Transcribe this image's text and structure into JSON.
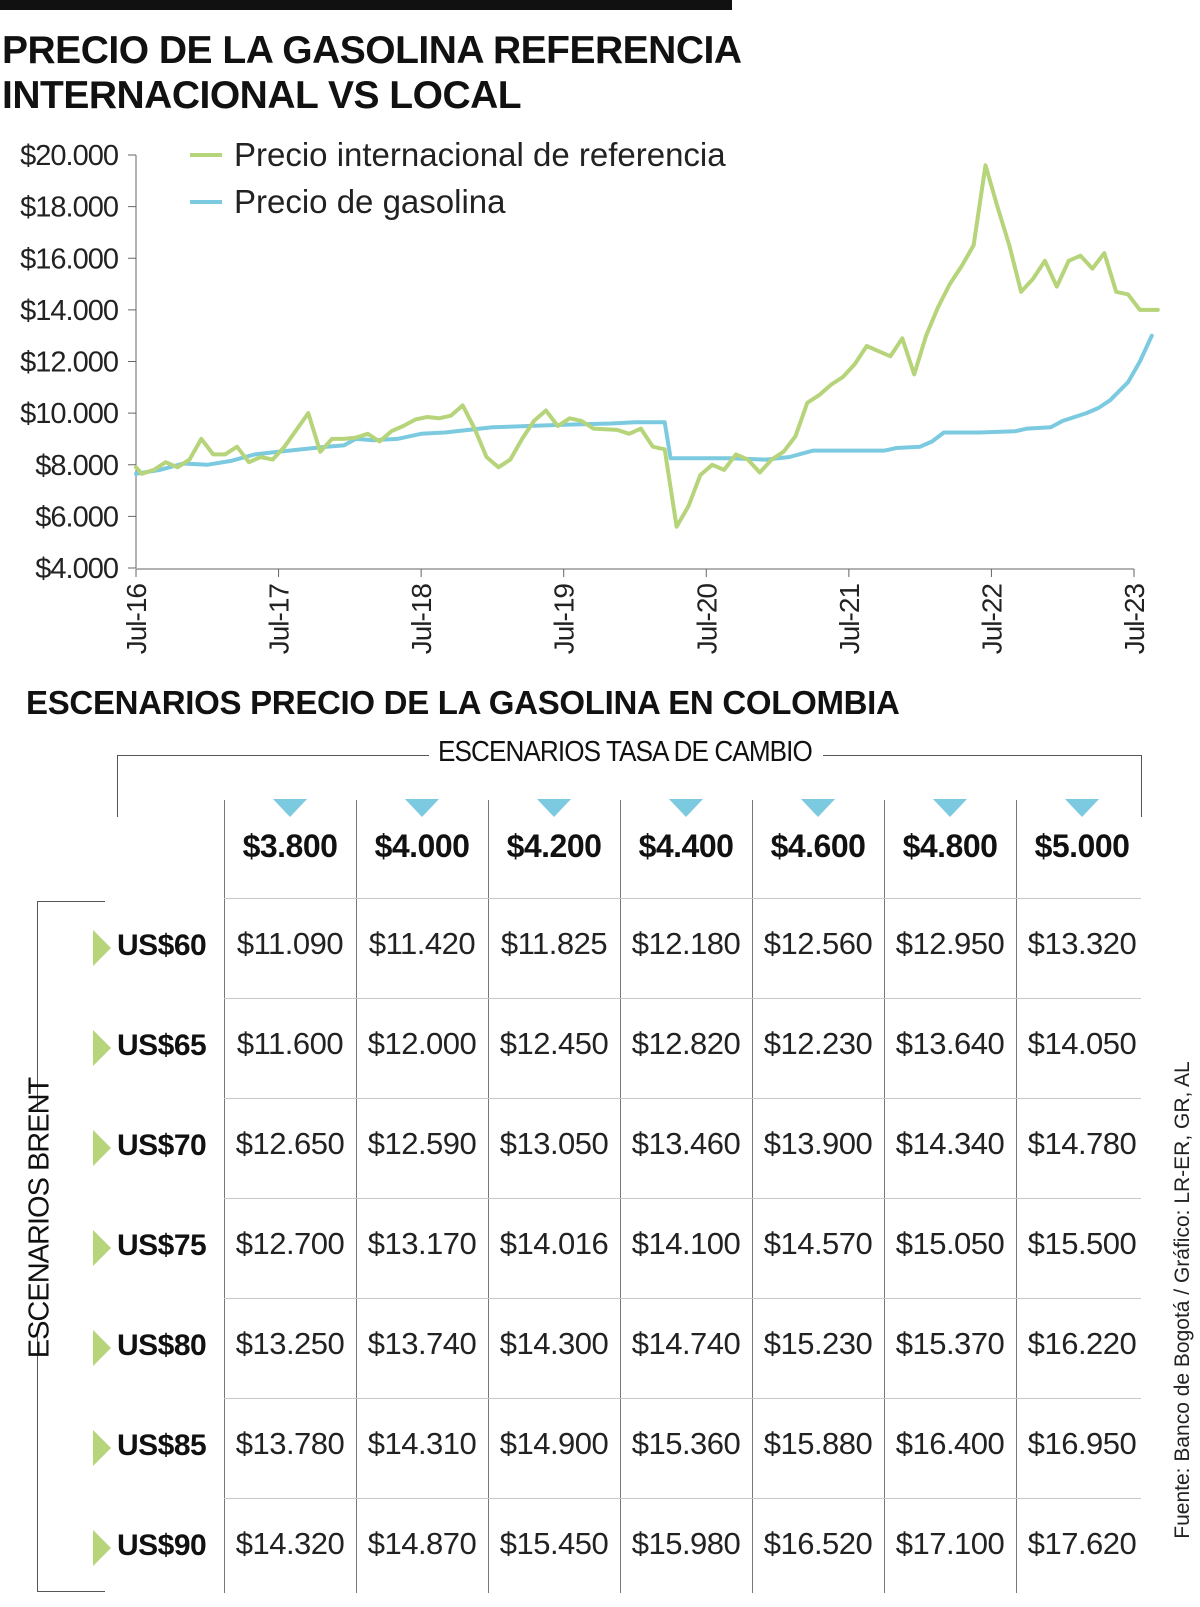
{
  "title_line1": "PRECIO DE LA GASOLINA REFERENCIA",
  "title_line2": "INTERNACIONAL VS LOCAL",
  "chart_data": {
    "type": "line",
    "title": "PRECIO DE LA GASOLINA REFERENCIA INTERNACIONAL VS LOCAL",
    "xlabel": "",
    "ylabel": "",
    "xlim": [
      0,
      84
    ],
    "ylim": [
      4000,
      20000
    ],
    "yticks": [
      20000,
      18000,
      16000,
      14000,
      12000,
      10000,
      8000,
      6000,
      4000
    ],
    "ytick_labels": [
      "$20.000",
      "$18.000",
      "$16.000",
      "$14.000",
      "$12.000",
      "$10.000",
      "$8.000",
      "$6.000",
      "$4.000"
    ],
    "xticks": [
      0,
      12,
      24,
      36,
      48,
      60,
      72,
      84
    ],
    "xtick_labels": [
      "Jul-16",
      "Jul-17",
      "Jul-18",
      "Jul-19",
      "Jul-20",
      "Jul-21",
      "Jul-22",
      "Jul-23"
    ],
    "legend": [
      "Precio internacional de referencia",
      "Precio de gasolina"
    ],
    "legend_position": "top-left",
    "series": [
      {
        "name": "Precio internacional de referencia",
        "color": "#b6d47a",
        "points": [
          [
            0,
            7900
          ],
          [
            0.5,
            7650
          ],
          [
            1.5,
            7800
          ],
          [
            2.5,
            8100
          ],
          [
            3.5,
            7900
          ],
          [
            4.5,
            8200
          ],
          [
            5.5,
            9000
          ],
          [
            6.5,
            8400
          ],
          [
            7.5,
            8400
          ],
          [
            8.5,
            8700
          ],
          [
            9.5,
            8100
          ],
          [
            10.5,
            8300
          ],
          [
            11.5,
            8200
          ],
          [
            12.5,
            8700
          ],
          [
            14.5,
            10000
          ],
          [
            15.5,
            8500
          ],
          [
            16.5,
            9000
          ],
          [
            17.5,
            9000
          ],
          [
            18.5,
            9050
          ],
          [
            19.5,
            9200
          ],
          [
            20.5,
            8900
          ],
          [
            21.5,
            9300
          ],
          [
            22.5,
            9500
          ],
          [
            23.5,
            9750
          ],
          [
            24.5,
            9850
          ],
          [
            25.5,
            9800
          ],
          [
            26.5,
            9900
          ],
          [
            27.5,
            10300
          ],
          [
            28.5,
            9400
          ],
          [
            29.5,
            8300
          ],
          [
            30.5,
            7900
          ],
          [
            31.5,
            8200
          ],
          [
            32.5,
            9000
          ],
          [
            33.5,
            9700
          ],
          [
            34.5,
            10100
          ],
          [
            35.5,
            9500
          ],
          [
            36.5,
            9800
          ],
          [
            37.5,
            9700
          ],
          [
            38.5,
            9400
          ],
          [
            40.5,
            9350
          ],
          [
            41.5,
            9200
          ],
          [
            42.5,
            9400
          ],
          [
            43.5,
            8700
          ],
          [
            44.5,
            8600
          ],
          [
            45.5,
            5600
          ],
          [
            46.5,
            6400
          ],
          [
            47.5,
            7600
          ],
          [
            48.5,
            8000
          ],
          [
            49.5,
            7800
          ],
          [
            50.5,
            8400
          ],
          [
            51.5,
            8200
          ],
          [
            52.5,
            7700
          ],
          [
            53.5,
            8200
          ],
          [
            54.5,
            8500
          ],
          [
            55.5,
            9100
          ],
          [
            56.5,
            10400
          ],
          [
            57.5,
            10700
          ],
          [
            58.5,
            11100
          ],
          [
            59.5,
            11400
          ],
          [
            60.5,
            11900
          ],
          [
            61.5,
            12600
          ],
          [
            62.5,
            12400
          ],
          [
            63.5,
            12200
          ],
          [
            64.5,
            12900
          ],
          [
            65.5,
            11500
          ],
          [
            66.5,
            13000
          ],
          [
            67.5,
            14100
          ],
          [
            68.5,
            15000
          ],
          [
            69.5,
            15700
          ],
          [
            70.5,
            16500
          ],
          [
            71.5,
            19600
          ],
          [
            72.5,
            18000
          ],
          [
            73.5,
            16500
          ],
          [
            74.5,
            14700
          ],
          [
            75.5,
            15200
          ],
          [
            76.5,
            15900
          ],
          [
            77.5,
            14900
          ],
          [
            78.5,
            15900
          ],
          [
            79.5,
            16100
          ],
          [
            80.5,
            15600
          ],
          [
            81.5,
            16200
          ],
          [
            82.5,
            14700
          ],
          [
            83.5,
            14600
          ],
          [
            84.5,
            14000
          ],
          [
            86,
            14000
          ]
        ]
      },
      {
        "name": "Precio de gasolina",
        "color": "#7ccae0",
        "points": [
          [
            0,
            7650
          ],
          [
            2,
            7800
          ],
          [
            4,
            8050
          ],
          [
            6,
            8000
          ],
          [
            8,
            8150
          ],
          [
            10,
            8400
          ],
          [
            12,
            8500
          ],
          [
            14,
            8600
          ],
          [
            16,
            8700
          ],
          [
            17.5,
            8750
          ],
          [
            18.5,
            9000
          ],
          [
            20,
            8950
          ],
          [
            22,
            9000
          ],
          [
            24,
            9200
          ],
          [
            26,
            9250
          ],
          [
            28,
            9350
          ],
          [
            30,
            9450
          ],
          [
            33,
            9500
          ],
          [
            36,
            9550
          ],
          [
            40,
            9600
          ],
          [
            42,
            9650
          ],
          [
            44.5,
            9650
          ],
          [
            45,
            8250
          ],
          [
            50,
            8250
          ],
          [
            53,
            8200
          ],
          [
            55,
            8300
          ],
          [
            57,
            8550
          ],
          [
            63,
            8550
          ],
          [
            64,
            8650
          ],
          [
            66,
            8700
          ],
          [
            67,
            8900
          ],
          [
            68,
            9250
          ],
          [
            71,
            9250
          ],
          [
            74,
            9300
          ],
          [
            75,
            9400
          ],
          [
            77,
            9450
          ],
          [
            78,
            9700
          ],
          [
            80,
            10000
          ],
          [
            81,
            10200
          ],
          [
            82,
            10500
          ],
          [
            83.5,
            11200
          ],
          [
            84.5,
            12000
          ],
          [
            85.5,
            13000
          ]
        ]
      }
    ]
  },
  "table": {
    "title": "ESCENARIOS PRECIO DE LA GASOLINA EN COLOMBIA",
    "col_group_label": "ESCENARIOS TASA DE CAMBIO",
    "row_group_label": "ESCENARIOS BRENT",
    "columns": [
      "$3.800",
      "$4.000",
      "$4.200",
      "$4.400",
      "$4.600",
      "$4.800",
      "$5.000"
    ],
    "rows": [
      {
        "label": "US$60",
        "values": [
          "$11.090",
          "$11.420",
          "$11.825",
          "$12.180",
          "$12.560",
          "$12.950",
          "$13.320"
        ]
      },
      {
        "label": "US$65",
        "values": [
          "$11.600",
          "$12.000",
          "$12.450",
          "$12.820",
          "$12.230",
          "$13.640",
          "$14.050"
        ]
      },
      {
        "label": "US$70",
        "values": [
          "$12.650",
          "$12.590",
          "$13.050",
          "$13.460",
          "$13.900",
          "$14.340",
          "$14.780"
        ]
      },
      {
        "label": "US$75",
        "values": [
          "$12.700",
          "$13.170",
          "$14.016",
          "$14.100",
          "$14.570",
          "$15.050",
          "$15.500"
        ]
      },
      {
        "label": "US$80",
        "values": [
          "$13.250",
          "$13.740",
          "$14.300",
          "$14.740",
          "$15.230",
          "$15.370",
          "$16.220"
        ]
      },
      {
        "label": "US$85",
        "values": [
          "$13.780",
          "$14.310",
          "$14.900",
          "$15.360",
          "$15.880",
          "$16.400",
          "$16.950"
        ]
      },
      {
        "label": "US$90",
        "values": [
          "$14.320",
          "$14.870",
          "$15.450",
          "$15.980",
          "$16.520",
          "$17.100",
          "$17.620"
        ]
      }
    ]
  },
  "source": "Fuente: Banco de Bogotá / Gráfico: LR-ER, GR, AL",
  "colors": {
    "accent_blue": "#7ccae0",
    "accent_green": "#b6d47a"
  }
}
